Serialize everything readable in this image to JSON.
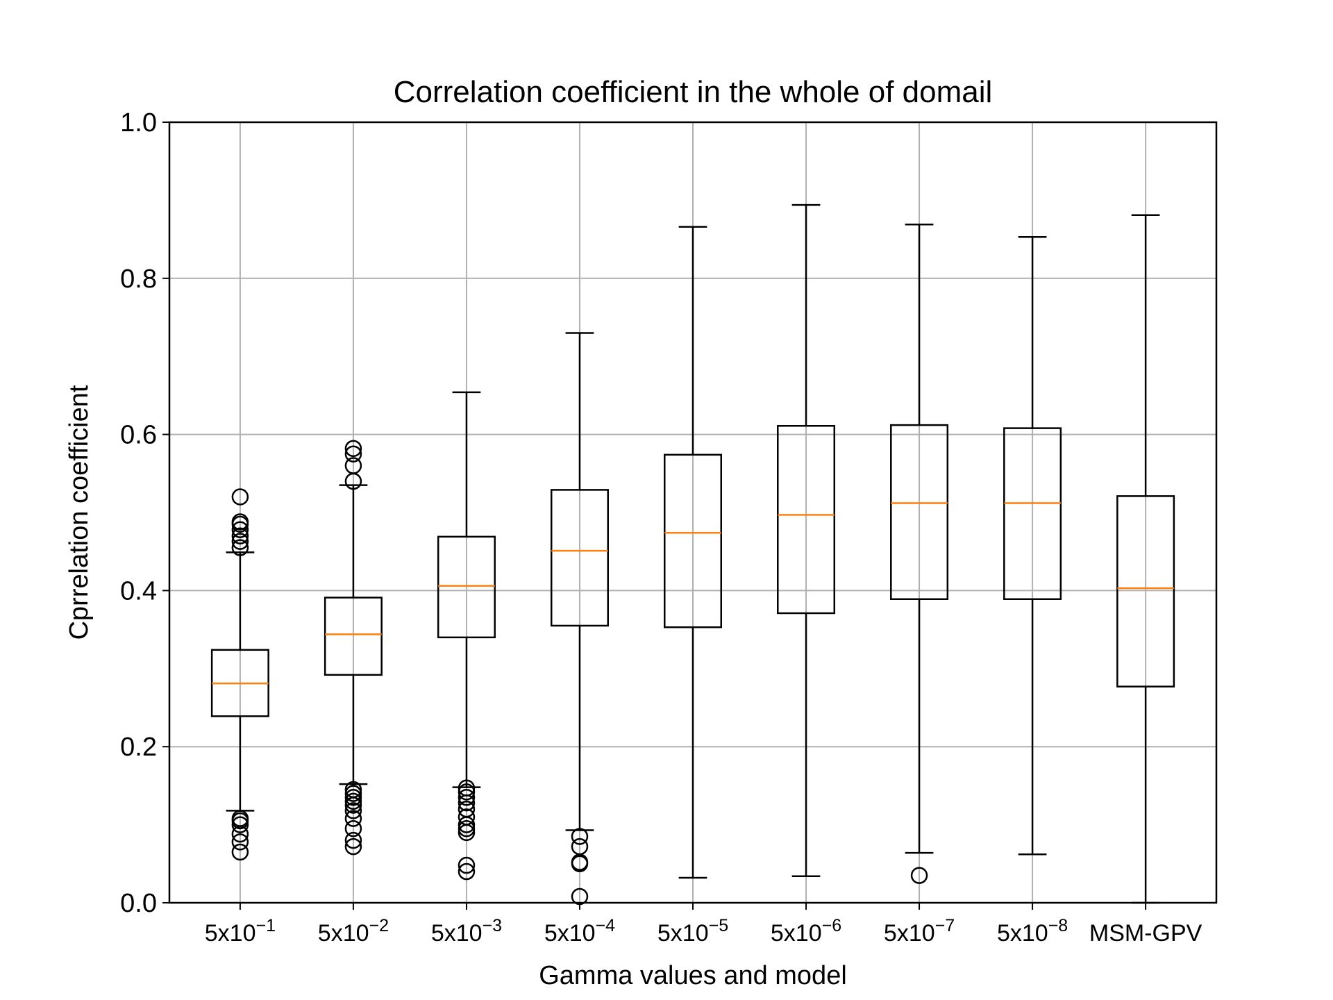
{
  "chart_data": {
    "type": "box",
    "title": "Correlation coefficient in the whole of domail",
    "xlabel": "Gamma values and model",
    "ylabel": "Cprrelation coefficient",
    "ylim": [
      0.0,
      1.0
    ],
    "yticks": [
      "0.0",
      "0.2",
      "0.4",
      "0.6",
      "0.8",
      "1.0"
    ],
    "grid": true,
    "colors": {
      "box": "#000000",
      "median": "#ff7f0e",
      "grid": "#b0b0b0"
    },
    "categories": [
      {
        "base": "5x10",
        "exp": "−1",
        "label": "5x10^-1"
      },
      {
        "base": "5x10",
        "exp": "−2",
        "label": "5x10^-2"
      },
      {
        "base": "5x10",
        "exp": "−3",
        "label": "5x10^-3"
      },
      {
        "base": "5x10",
        "exp": "−4",
        "label": "5x10^-4"
      },
      {
        "base": "5x10",
        "exp": "−5",
        "label": "5x10^-5"
      },
      {
        "base": "5x10",
        "exp": "−6",
        "label": "5x10^-6"
      },
      {
        "base": "5x10",
        "exp": "−7",
        "label": "5x10^-7"
      },
      {
        "base": "5x10",
        "exp": "−8",
        "label": "5x10^-8"
      },
      {
        "base": "MSM-GPV",
        "exp": "",
        "label": "MSM-GPV"
      }
    ],
    "boxes": [
      {
        "whislo": 0.118,
        "q1": 0.239,
        "med": 0.281,
        "q3": 0.324,
        "whishi": 0.449,
        "fliers": [
          0.065,
          0.078,
          0.088,
          0.1,
          0.105,
          0.108,
          0.455,
          0.463,
          0.47,
          0.478,
          0.485,
          0.488,
          0.52
        ]
      },
      {
        "whislo": 0.152,
        "q1": 0.292,
        "med": 0.344,
        "q3": 0.391,
        "whishi": 0.535,
        "fliers": [
          0.072,
          0.08,
          0.095,
          0.108,
          0.118,
          0.125,
          0.13,
          0.135,
          0.14,
          0.145,
          0.54,
          0.56,
          0.575,
          0.582
        ]
      },
      {
        "whislo": 0.148,
        "q1": 0.34,
        "med": 0.406,
        "q3": 0.469,
        "whishi": 0.654,
        "fliers": [
          0.04,
          0.048,
          0.09,
          0.095,
          0.1,
          0.11,
          0.12,
          0.128,
          0.135,
          0.142,
          0.147
        ]
      },
      {
        "whislo": 0.093,
        "q1": 0.355,
        "med": 0.451,
        "q3": 0.529,
        "whishi": 0.73,
        "fliers": [
          0.008,
          0.05,
          0.052,
          0.072,
          0.085
        ]
      },
      {
        "whislo": 0.032,
        "q1": 0.353,
        "med": 0.474,
        "q3": 0.574,
        "whishi": 0.866,
        "fliers": []
      },
      {
        "whislo": 0.034,
        "q1": 0.371,
        "med": 0.497,
        "q3": 0.611,
        "whishi": 0.894,
        "fliers": []
      },
      {
        "whislo": 0.064,
        "q1": 0.389,
        "med": 0.512,
        "q3": 0.612,
        "whishi": 0.869,
        "fliers": [
          0.035
        ]
      },
      {
        "whislo": 0.062,
        "q1": 0.389,
        "med": 0.512,
        "q3": 0.608,
        "whishi": 0.853,
        "fliers": []
      },
      {
        "whislo": 0.0,
        "q1": 0.277,
        "med": 0.403,
        "q3": 0.521,
        "whishi": 0.881,
        "fliers": []
      }
    ]
  }
}
